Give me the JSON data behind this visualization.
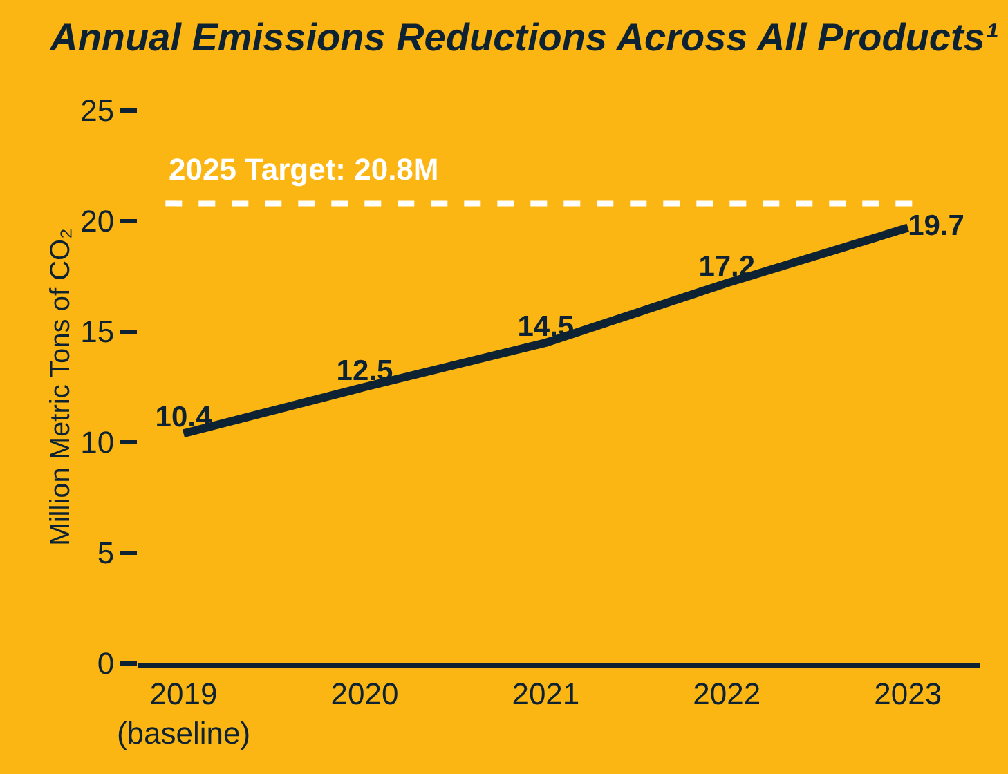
{
  "chart_data": {
    "type": "line",
    "title": "Annual Emissions Reductions Across All Products¹",
    "ylabel": "Million Metric Tons of CO₂",
    "categories": [
      "2019\n(baseline)",
      "2020",
      "2021",
      "2022",
      "2023"
    ],
    "series": [
      {
        "color": "#0d2233",
        "values": [
          10.4,
          12.5,
          14.5,
          17.2,
          19.7
        ]
      }
    ],
    "ylim": [
      0,
      25
    ],
    "yticks": [
      0,
      5,
      10,
      15,
      20,
      25
    ],
    "grid": false,
    "marker": "none",
    "line_style": "solid",
    "data_labels": true,
    "ref_lines": [
      {
        "axis": "y",
        "value": 20.8,
        "label": "2025 Target: 20.8M",
        "color": "#ffffff",
        "line_style": "dashed"
      }
    ]
  }
}
